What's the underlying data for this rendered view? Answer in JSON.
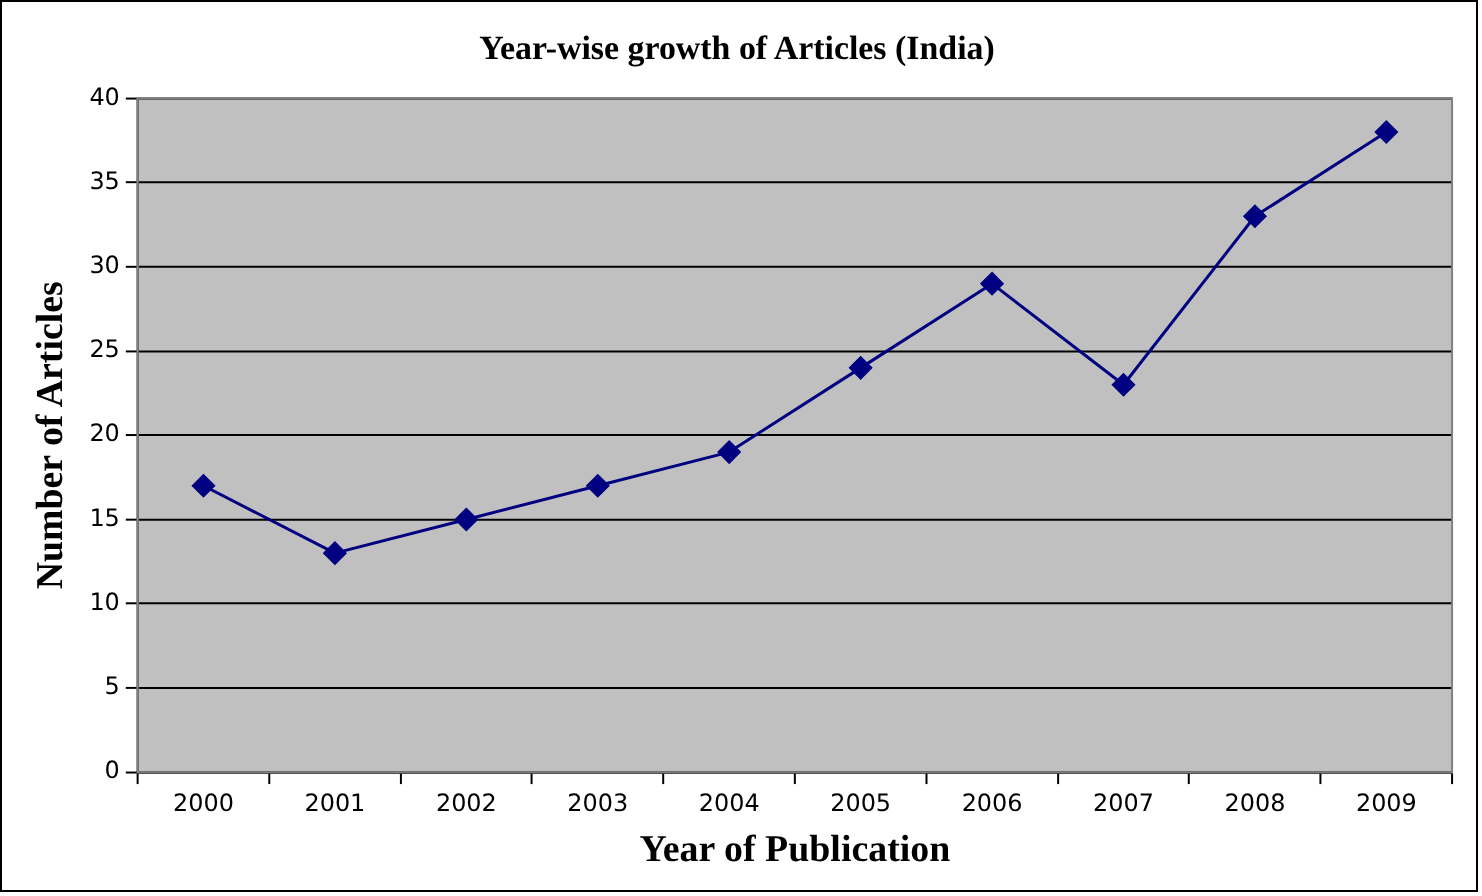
{
  "chart_data": {
    "type": "line",
    "title": "Year-wise growth of Articles (India)",
    "xlabel": "Year of Publication",
    "ylabel": "Number of Articles",
    "categories": [
      "2000",
      "2001",
      "2002",
      "2003",
      "2004",
      "2005",
      "2006",
      "2007",
      "2008",
      "2009"
    ],
    "series": [
      {
        "color": "#000080",
        "values": [
          17,
          13,
          15,
          17,
          19,
          24,
          29,
          23,
          33,
          38
        ]
      }
    ],
    "ylim": [
      0,
      40
    ],
    "yticks": [
      0,
      5,
      10,
      15,
      20,
      25,
      30,
      35,
      40
    ],
    "grid": "y",
    "legend": false,
    "marker": "diamond",
    "line_style": "solid"
  }
}
